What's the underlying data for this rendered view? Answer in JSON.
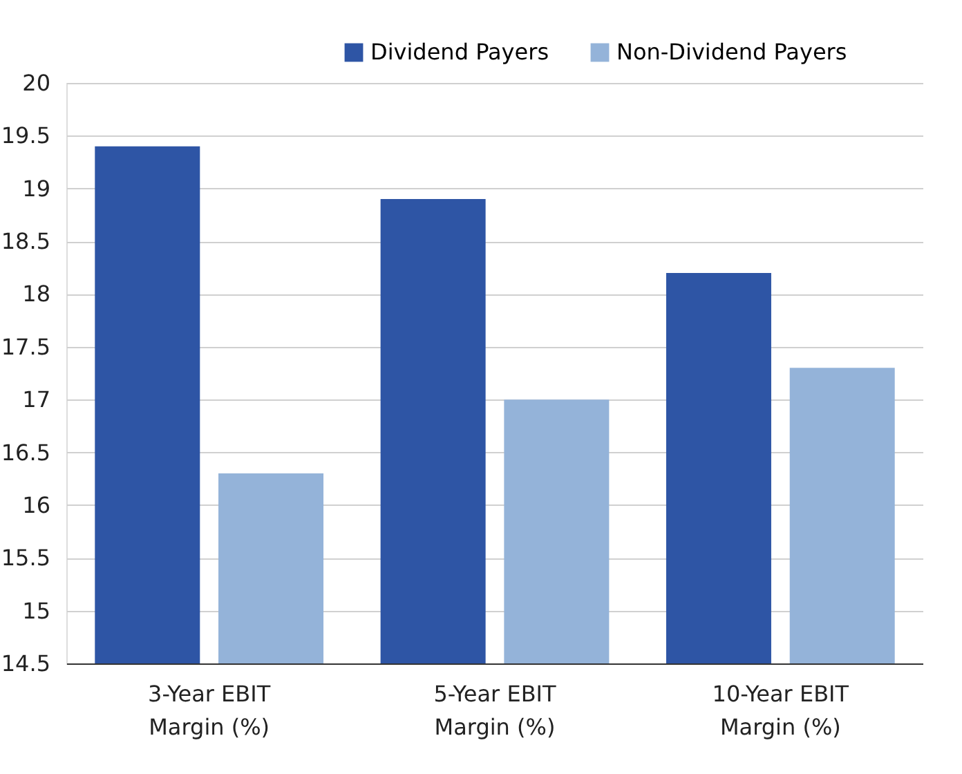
{
  "chart_data": {
    "type": "bar",
    "categories": [
      "3-Year EBIT Margin (%)",
      "5-Year EBIT Margin (%)",
      "10-Year  EBIT Margin (%)"
    ],
    "series": [
      {
        "name": "Dividend Payers",
        "color": "#2e55a5",
        "values": [
          19.4,
          18.9,
          18.2
        ]
      },
      {
        "name": "Non-Dividend Payers",
        "color": "#94b3d9",
        "values": [
          16.3,
          17.0,
          17.3
        ]
      }
    ],
    "ylim": [
      14.5,
      20
    ],
    "yticks": [
      14.5,
      15,
      15.5,
      16,
      16.5,
      17,
      17.5,
      18,
      18.5,
      19,
      19.5,
      20
    ],
    "grid": "y",
    "legend": "top right"
  }
}
